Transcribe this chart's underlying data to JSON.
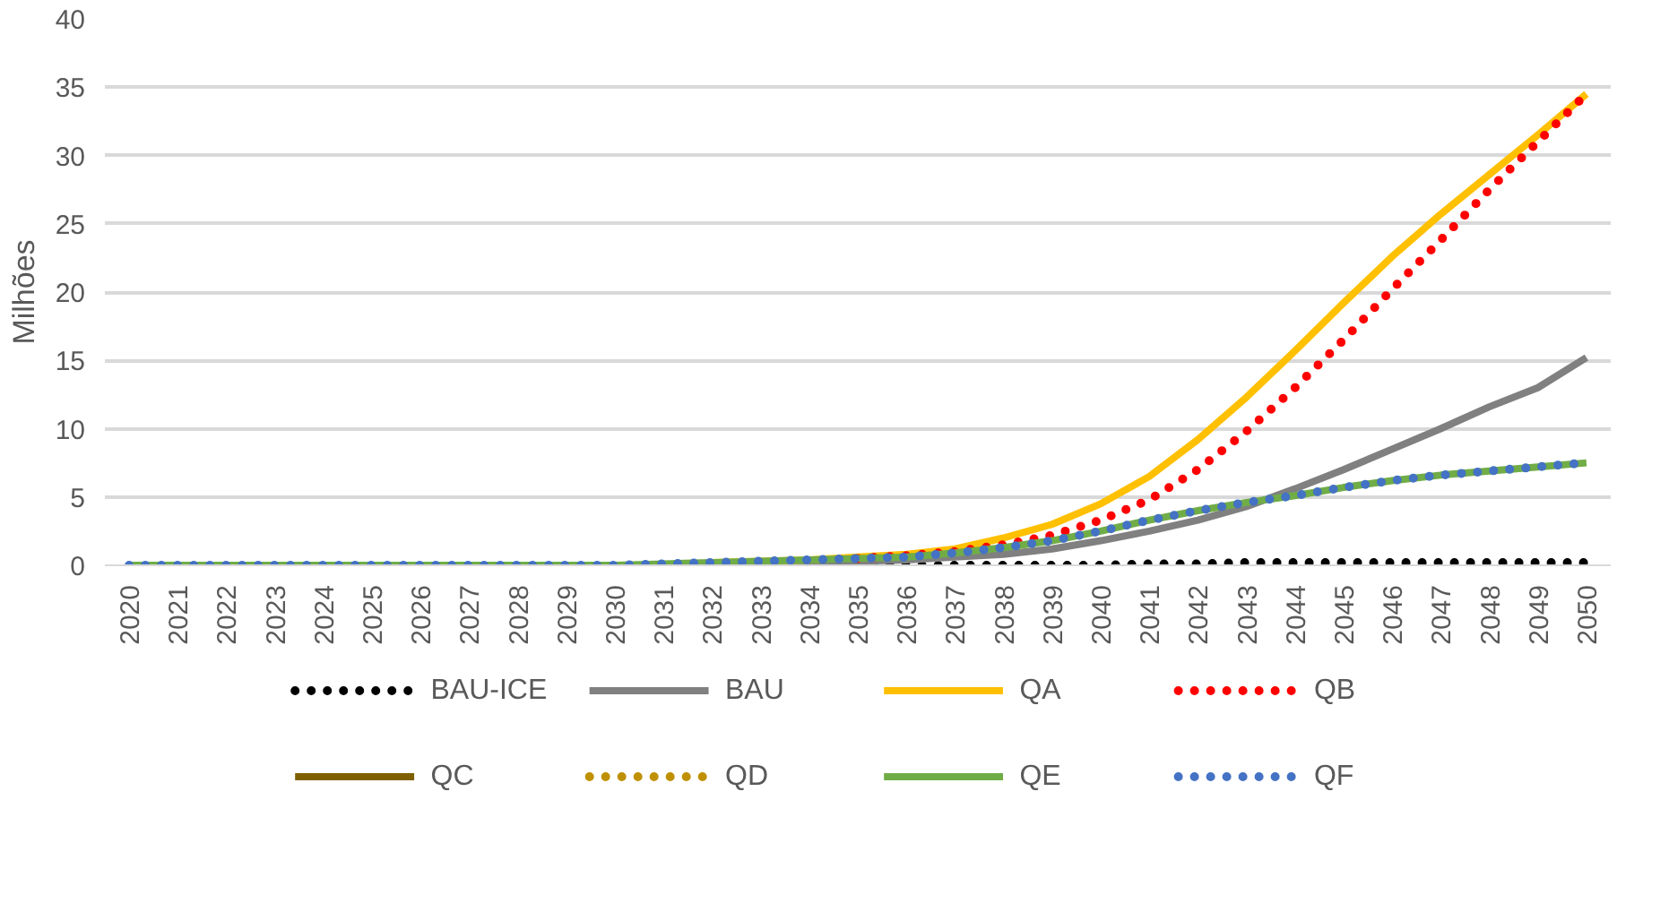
{
  "chart_data": {
    "type": "line",
    "ylabel": "Milhões",
    "categories": [
      "2020",
      "2021",
      "2022",
      "2023",
      "2024",
      "2025",
      "2026",
      "2027",
      "2028",
      "2029",
      "2030",
      "2031",
      "2032",
      "2033",
      "2034",
      "2035",
      "2036",
      "2037",
      "2038",
      "2039",
      "2040",
      "2041",
      "2042",
      "2043",
      "2044",
      "2045",
      "2046",
      "2047",
      "2048",
      "2049",
      "2050"
    ],
    "ylim": [
      0,
      40
    ],
    "yticks": [
      0,
      5,
      10,
      15,
      20,
      25,
      30,
      35,
      40
    ],
    "grid": "y",
    "legend": "bottom",
    "series": [
      {
        "name": "BAU-ICE",
        "color": "#000000",
        "line_style": "dotted",
        "values": [
          null,
          null,
          null,
          null,
          null,
          null,
          null,
          null,
          null,
          null,
          null,
          null,
          null,
          0,
          0,
          0,
          0,
          0,
          0,
          0,
          0,
          0.1,
          0.1,
          0.2,
          0.2,
          0.2,
          0.2,
          0.2,
          0.2,
          0.2,
          0.2
        ]
      },
      {
        "name": "BAU",
        "color": "#808080",
        "line_style": "solid",
        "values": [
          null,
          null,
          null,
          null,
          null,
          null,
          null,
          null,
          null,
          null,
          null,
          null,
          0.1,
          0.1,
          0.2,
          0.3,
          0.4,
          0.6,
          0.8,
          1.2,
          1.8,
          2.5,
          3.3,
          4.3,
          5.6,
          7.0,
          8.5,
          10.0,
          11.6,
          13.0,
          15.2
        ]
      },
      {
        "name": "QA",
        "color": "#ffc000",
        "line_style": "solid",
        "values": [
          null,
          null,
          null,
          null,
          null,
          null,
          null,
          null,
          null,
          null,
          null,
          null,
          0.2,
          0.3,
          0.4,
          0.6,
          0.8,
          1.2,
          2.0,
          3.0,
          4.5,
          6.5,
          9.2,
          12.3,
          15.7,
          19.2,
          22.6,
          25.7,
          28.6,
          31.5,
          34.5
        ]
      },
      {
        "name": "QB",
        "color": "#ff0000",
        "line_style": "dotted",
        "values": [
          null,
          null,
          null,
          null,
          null,
          null,
          null,
          null,
          null,
          null,
          null,
          null,
          null,
          null,
          null,
          0.5,
          0.7,
          1.0,
          1.5,
          2.2,
          3.3,
          4.8,
          7.0,
          9.8,
          13.0,
          16.5,
          20.2,
          23.8,
          27.5,
          31.0,
          34.5
        ]
      },
      {
        "name": "QC",
        "color": "#7f6000",
        "line_style": "solid",
        "values": [
          null,
          null,
          null,
          null,
          null,
          null,
          null,
          null,
          null,
          null,
          null,
          null,
          null,
          null,
          null,
          null,
          null,
          null,
          null,
          null,
          null,
          null,
          null,
          null,
          null,
          null,
          null,
          null,
          null,
          null,
          null
        ]
      },
      {
        "name": "QD",
        "color": "#bf9000",
        "line_style": "dotted",
        "values": [
          null,
          null,
          null,
          null,
          null,
          null,
          null,
          null,
          null,
          null,
          null,
          null,
          null,
          null,
          null,
          null,
          null,
          null,
          null,
          null,
          null,
          null,
          null,
          null,
          null,
          null,
          null,
          null,
          null,
          null,
          null
        ]
      },
      {
        "name": "QE",
        "color": "#70ad47",
        "line_style": "solid",
        "values": [
          0,
          0,
          0,
          0,
          0,
          0,
          0,
          0,
          0,
          0,
          0,
          0.1,
          0.2,
          0.3,
          0.4,
          0.5,
          0.6,
          0.9,
          1.3,
          1.8,
          2.5,
          3.3,
          4.0,
          4.6,
          5.1,
          5.7,
          6.2,
          6.6,
          6.9,
          7.2,
          7.5
        ]
      },
      {
        "name": "QF",
        "color": "#4472c4",
        "line_style": "dotted",
        "values": [
          0,
          0,
          0,
          0,
          0,
          0,
          0,
          0,
          0,
          0,
          0,
          0.1,
          0.2,
          0.3,
          0.4,
          0.5,
          0.6,
          0.9,
          1.3,
          1.8,
          2.5,
          3.3,
          4.0,
          4.6,
          5.1,
          5.7,
          6.2,
          6.6,
          6.9,
          7.2,
          7.5
        ]
      }
    ]
  }
}
